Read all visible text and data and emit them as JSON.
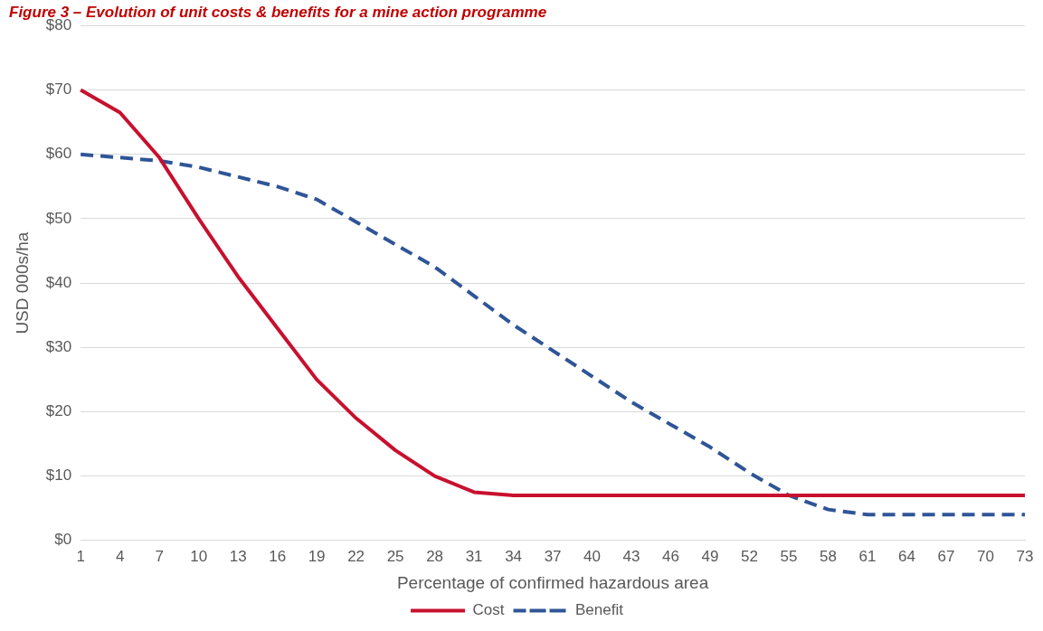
{
  "chart_data": {
    "type": "line",
    "title": "Figure 3 – Evolution of unit costs & benefits for a mine action programme",
    "xlabel": "Percentage of confirmed hazardous area",
    "ylabel": "USD 000s/ha",
    "categories": [
      "1",
      "4",
      "7",
      "10",
      "13",
      "16",
      "19",
      "22",
      "25",
      "28",
      "31",
      "34",
      "37",
      "40",
      "43",
      "46",
      "49",
      "52",
      "55",
      "58",
      "61",
      "64",
      "67",
      "70",
      "73"
    ],
    "series": [
      {
        "name": "Cost",
        "color": "#c8102e",
        "line_style": "solid",
        "values": [
          70,
          66.5,
          59.5,
          50,
          41,
          33,
          25,
          19,
          14,
          10,
          7.5,
          7,
          7,
          7,
          7,
          7,
          7,
          7,
          7,
          7,
          7,
          7,
          7,
          7,
          7
        ]
      },
      {
        "name": "Benefit",
        "color": "#2f5597",
        "line_style": "dashed",
        "values": [
          60,
          59.5,
          59,
          58,
          56.5,
          55,
          53,
          49.5,
          46,
          42.5,
          38,
          33.5,
          29.5,
          25.5,
          21.5,
          18,
          14.5,
          10.5,
          7,
          4.8,
          4,
          4,
          4,
          4,
          4
        ]
      }
    ],
    "ylim": [
      0,
      80
    ],
    "yticks": [
      {
        "value": 0,
        "label": "$0"
      },
      {
        "value": 10,
        "label": "$10"
      },
      {
        "value": 20,
        "label": "$20"
      },
      {
        "value": 30,
        "label": "$30"
      },
      {
        "value": 40,
        "label": "$40"
      },
      {
        "value": 50,
        "label": "$50"
      },
      {
        "value": 60,
        "label": "$60"
      },
      {
        "value": 70,
        "label": "$70"
      },
      {
        "value": 80,
        "label": "$80"
      }
    ],
    "grid": "y",
    "legend": "bottom",
    "marker": "none"
  }
}
